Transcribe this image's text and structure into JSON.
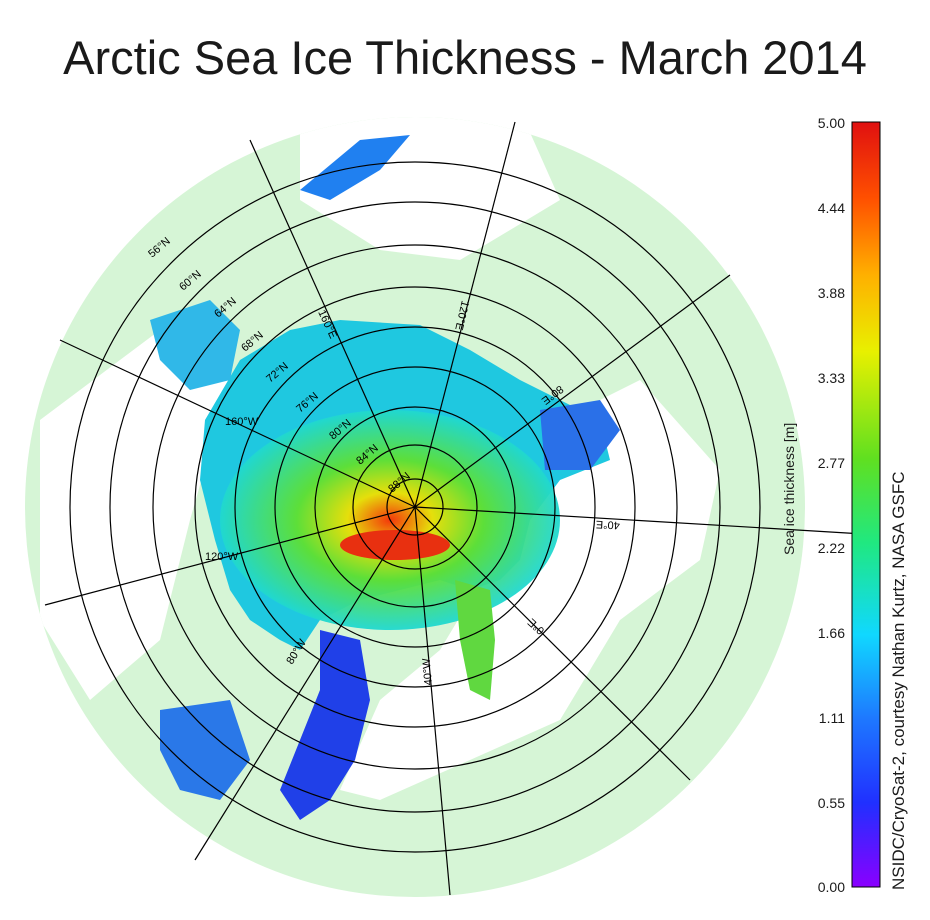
{
  "title": "Arctic Sea Ice Thickness - March 2014",
  "colorbar": {
    "label": "Sea ice thickness [m]",
    "ticks": [
      "5.00",
      "4.44",
      "3.88",
      "3.33",
      "2.77",
      "2.22",
      "1.66",
      "1.11",
      "0.55",
      "0.00"
    ],
    "range": [
      0,
      5
    ],
    "colors": [
      "#8a00ff",
      "#2030ff",
      "#1e78ff",
      "#10d8ff",
      "#20e880",
      "#60e020",
      "#e8f000",
      "#ffb000",
      "#ff5000",
      "#e01010"
    ]
  },
  "credit": "NSIDC/CryoSat-2, courtesy Nathan Kurtz, NASA GSFC",
  "grid_labels": {
    "latitudes": [
      "56°N",
      "60°N",
      "64°N",
      "68°N",
      "72°N",
      "76°N",
      "80°N",
      "84°N",
      "88°N"
    ],
    "longitudes": [
      "160°E",
      "120°E",
      "80°E",
      "40°E",
      "0°E",
      "40°W",
      "80°W",
      "120°W",
      "160°W"
    ]
  },
  "colors": {
    "land": "#d6f5d6",
    "ocean": "#ffffff",
    "grid": "#000000"
  }
}
